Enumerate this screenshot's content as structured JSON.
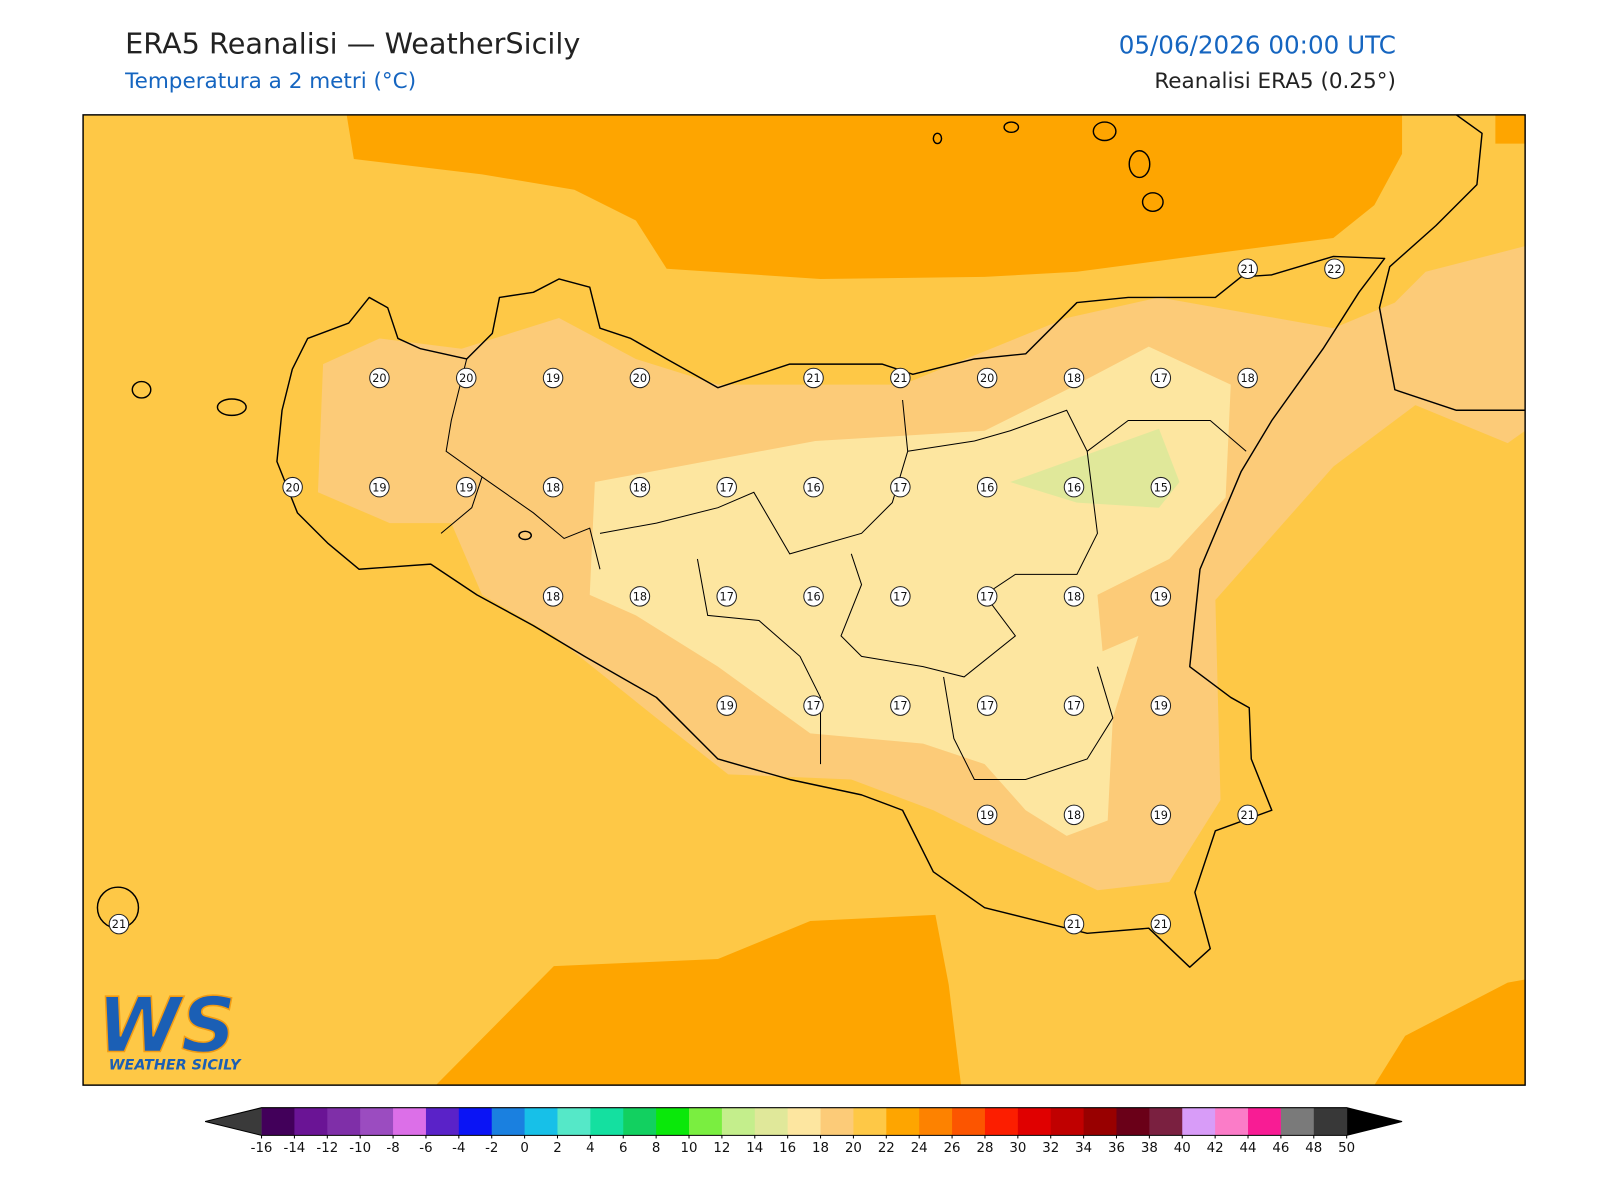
{
  "header": {
    "title": "ERA5 Reanalisi — WeatherSicily",
    "subtitle": "Temperatura a 2 metri (°C)",
    "datetime": "05/06/2026 00:00 UTC",
    "source": "Reanalisi ERA5 (0.25°)"
  },
  "stations": {
    "rows": [
      [
        null,
        null,
        null,
        null,
        null,
        null,
        null,
        null,
        null,
        null,
        null,
        null,
        null,
        21,
        22
      ],
      [
        null,
        null,
        null,
        20,
        20,
        19,
        20,
        null,
        21,
        21,
        20,
        18,
        17,
        18,
        null
      ],
      [
        null,
        null,
        20,
        19,
        19,
        18,
        18,
        17,
        16,
        17,
        16,
        16,
        15,
        null,
        null
      ],
      [
        null,
        null,
        null,
        null,
        null,
        18,
        18,
        17,
        16,
        17,
        17,
        18,
        19,
        null,
        null
      ],
      [
        null,
        null,
        null,
        null,
        null,
        null,
        null,
        19,
        17,
        17,
        17,
        17,
        19,
        null,
        null
      ],
      [
        null,
        null,
        null,
        null,
        null,
        null,
        null,
        null,
        null,
        null,
        19,
        18,
        19,
        21,
        null
      ],
      [
        21,
        null,
        null,
        null,
        null,
        null,
        null,
        null,
        null,
        null,
        null,
        21,
        21,
        null,
        null
      ]
    ]
  },
  "colorbar": {
    "ticks": [
      -16,
      -14,
      -12,
      -10,
      -8,
      -6,
      -4,
      -2,
      0,
      2,
      4,
      6,
      8,
      10,
      12,
      14,
      16,
      18,
      20,
      22,
      24,
      26,
      28,
      30,
      32,
      34,
      36,
      38,
      40,
      42,
      44,
      46,
      48,
      50
    ],
    "colors": [
      "#42005a",
      "#6a1495",
      "#7f2fa8",
      "#9b4cc0",
      "#dc6fe8",
      "#5a22c8",
      "#0a14f5",
      "#1a80e0",
      "#17c0e8",
      "#55e8c8",
      "#14e0a0",
      "#12d060",
      "#0ae80a",
      "#7aee40",
      "#c4ee8c",
      "#e0e89a",
      "#fde6a0",
      "#fccb78",
      "#fec846",
      "#fea500",
      "#fd8200",
      "#fc5500",
      "#fc1e00",
      "#e00000",
      "#c00000",
      "#980000",
      "#6a0018",
      "#7a2040",
      "#d89cf8",
      "#fb7cc8",
      "#f81c94",
      "#7a7a7a",
      "#383838"
    ],
    "under_color": "#3a3a3a",
    "over_color": "#000000"
  },
  "logo": {
    "mark": "WS",
    "name": "WEATHER SICILY"
  }
}
